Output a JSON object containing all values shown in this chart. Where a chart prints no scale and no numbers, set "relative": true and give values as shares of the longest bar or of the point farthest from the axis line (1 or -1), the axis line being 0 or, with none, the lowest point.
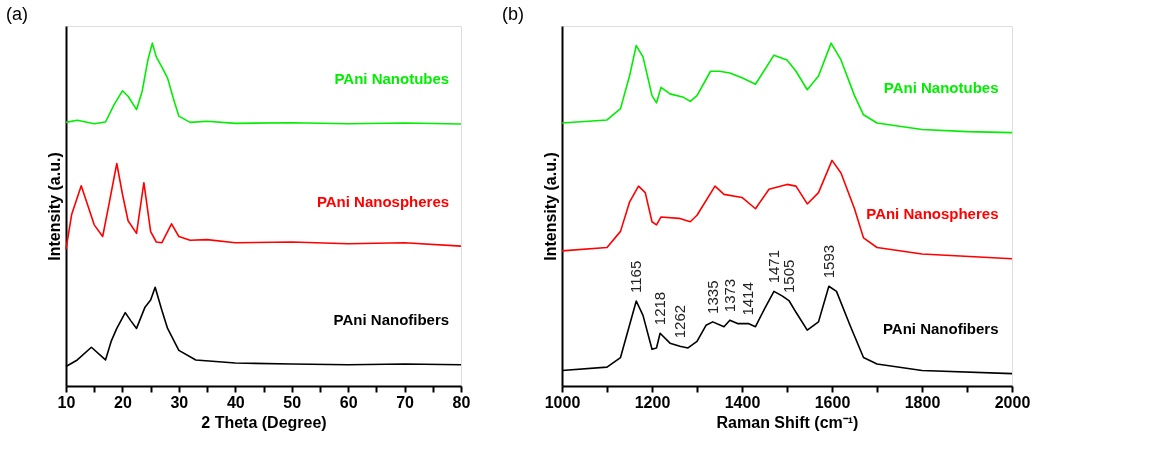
{
  "chart_data": [
    {
      "type": "line",
      "title": "(a)",
      "xlabel": "2 Theta (Degree)",
      "ylabel": "Intensity (a.u.)",
      "relative": true,
      "tick_labels": "x",
      "legend": false,
      "grid": false,
      "xlim": [
        10,
        80
      ],
      "xticks": [
        10,
        {
          "value": 15,
          "label": null
        },
        20,
        {
          "value": 25,
          "label": null
        },
        30,
        {
          "value": 35,
          "label": null
        },
        40,
        {
          "value": 45,
          "label": null
        },
        50,
        {
          "value": 55,
          "label": null
        },
        60,
        {
          "value": 65,
          "label": null
        },
        70,
        {
          "value": 75,
          "label": null
        },
        80
      ],
      "series": [
        {
          "name": "PAni Nanotubes",
          "color": "#00ee00",
          "x": [
            10,
            12,
            15,
            17,
            18.5,
            20,
            21,
            22.5,
            23.5,
            24.5,
            25.3,
            26,
            27,
            28,
            29,
            30,
            32,
            35,
            40,
            50,
            60,
            70,
            80
          ],
          "values": [
            0.769,
            0.775,
            0.765,
            0.77,
            0.82,
            0.861,
            0.845,
            0.806,
            0.86,
            0.95,
            1.0,
            0.96,
            0.93,
            0.898,
            0.84,
            0.787,
            0.769,
            0.772,
            0.766,
            0.768,
            0.765,
            0.767,
            0.764
          ]
        },
        {
          "name": "PAni Nanospheres",
          "color": "#ff0000",
          "x": [
            10,
            11,
            12.7,
            14,
            15,
            16.5,
            17.5,
            19,
            20,
            21,
            22.5,
            23.8,
            25,
            26,
            27,
            28.7,
            30,
            32,
            35,
            40,
            50,
            60,
            70,
            80
          ],
          "values": [
            0.399,
            0.5,
            0.584,
            0.52,
            0.47,
            0.436,
            0.52,
            0.649,
            0.56,
            0.482,
            0.445,
            0.593,
            0.45,
            0.42,
            0.418,
            0.473,
            0.436,
            0.425,
            0.427,
            0.418,
            0.42,
            0.415,
            0.418,
            0.408
          ]
        },
        {
          "name": "PAni Nanofibers",
          "color": "#000000",
          "x": [
            10,
            12,
            14.5,
            17,
            18,
            19,
            20.5,
            21.5,
            22.5,
            24,
            25,
            25.8,
            27,
            28,
            30,
            33,
            40,
            50,
            60,
            70,
            80
          ],
          "values": [
            0.057,
            0.076,
            0.113,
            0.076,
            0.13,
            0.168,
            0.214,
            0.19,
            0.168,
            0.23,
            0.251,
            0.288,
            0.22,
            0.168,
            0.104,
            0.076,
            0.067,
            0.064,
            0.062,
            0.064,
            0.062
          ]
        }
      ]
    },
    {
      "type": "line",
      "title": "(b)",
      "xlabel": "Raman Shift (cm⁻¹)",
      "ylabel": "Intensity (a.u.)",
      "relative": true,
      "tick_labels": "x",
      "legend": false,
      "grid": false,
      "xlim": [
        1000,
        2000
      ],
      "xticks": [
        1000,
        {
          "value": 1100,
          "label": null
        },
        1200,
        {
          "value": 1300,
          "label": null
        },
        1400,
        {
          "value": 1500,
          "label": null
        },
        1600,
        {
          "value": 1700,
          "label": null
        },
        1800,
        {
          "value": 1900,
          "label": null
        },
        2000
      ],
      "annotations": [
        {
          "text": "1165",
          "x": 1165,
          "y": 0.248
        },
        {
          "text": "1218",
          "x": 1218,
          "y": 0.154
        },
        {
          "text": "1262",
          "x": 1262,
          "y": 0.116
        },
        {
          "text": "1335",
          "x": 1335,
          "y": 0.187
        },
        {
          "text": "1373",
          "x": 1373,
          "y": 0.192
        },
        {
          "text": "1414",
          "x": 1414,
          "y": 0.182
        },
        {
          "text": "1471",
          "x": 1471,
          "y": 0.276
        },
        {
          "text": "1505",
          "x": 1505,
          "y": 0.248
        },
        {
          "text": "1593",
          "x": 1593,
          "y": 0.291
        }
      ],
      "series": [
        {
          "name": "PAni Nanotubes",
          "color": "#00ee00",
          "x": [
            1000,
            1100,
            1130,
            1150,
            1165,
            1180,
            1200,
            1210,
            1220,
            1240,
            1270,
            1285,
            1300,
            1330,
            1350,
            1373,
            1400,
            1430,
            1471,
            1500,
            1520,
            1545,
            1570,
            1598,
            1620,
            1650,
            1670,
            1700,
            1800,
            1900,
            2000
          ],
          "values": [
            0.767,
            0.776,
            0.809,
            0.904,
            0.993,
            0.96,
            0.847,
            0.826,
            0.871,
            0.852,
            0.842,
            0.83,
            0.847,
            0.918,
            0.918,
            0.913,
            0.899,
            0.88,
            0.965,
            0.951,
            0.918,
            0.864,
            0.904,
            1.0,
            0.951,
            0.847,
            0.791,
            0.767,
            0.748,
            0.742,
            0.739
          ]
        },
        {
          "name": "PAni Nanospheres",
          "color": "#ff0000",
          "x": [
            1000,
            1100,
            1130,
            1150,
            1170,
            1185,
            1200,
            1210,
            1220,
            1260,
            1285,
            1300,
            1340,
            1360,
            1400,
            1430,
            1460,
            1500,
            1520,
            1545,
            1570,
            1600,
            1620,
            1650,
            1670,
            1700,
            1800,
            2000
          ],
          "values": [
            0.394,
            0.404,
            0.451,
            0.536,
            0.583,
            0.564,
            0.479,
            0.47,
            0.493,
            0.489,
            0.479,
            0.498,
            0.583,
            0.559,
            0.55,
            0.517,
            0.574,
            0.588,
            0.583,
            0.531,
            0.564,
            0.658,
            0.621,
            0.517,
            0.432,
            0.404,
            0.385,
            0.371
          ]
        },
        {
          "name": "PAni Nanofibers",
          "color": "#000000",
          "x": [
            1000,
            1100,
            1130,
            1150,
            1165,
            1180,
            1200,
            1210,
            1218,
            1240,
            1262,
            1280,
            1300,
            1320,
            1335,
            1360,
            1373,
            1390,
            1414,
            1430,
            1450,
            1471,
            1490,
            1505,
            1520,
            1545,
            1570,
            1593,
            1610,
            1640,
            1670,
            1700,
            1800,
            2000
          ],
          "values": [
            0.045,
            0.055,
            0.083,
            0.177,
            0.248,
            0.206,
            0.107,
            0.111,
            0.154,
            0.125,
            0.116,
            0.111,
            0.13,
            0.177,
            0.187,
            0.173,
            0.192,
            0.182,
            0.182,
            0.173,
            0.225,
            0.276,
            0.262,
            0.248,
            0.215,
            0.163,
            0.187,
            0.291,
            0.276,
            0.177,
            0.083,
            0.064,
            0.045,
            0.036
          ]
        }
      ]
    }
  ]
}
